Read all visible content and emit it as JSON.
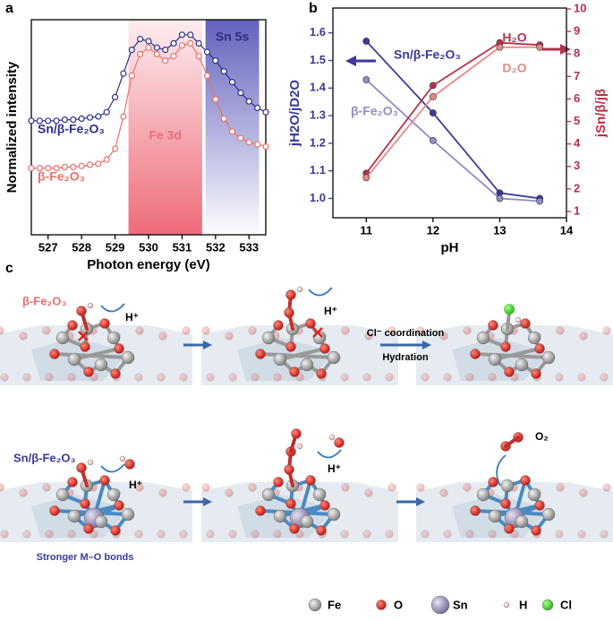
{
  "panel_labels": [
    "a",
    "b",
    "c"
  ],
  "chart_data": [
    {
      "type": "line",
      "x_label": "Photon energy (eV)",
      "y_label": "Normalized intensity",
      "xlim": [
        526.5,
        533.5
      ],
      "xticks": [
        527,
        528,
        529,
        530,
        531,
        532,
        533
      ],
      "ylim": [
        0,
        1
      ],
      "bands": [
        {
          "label": "Fe 3d",
          "x": [
            529.4,
            531.6
          ],
          "color": "#ee6b7a",
          "label_color": "#e8707a"
        },
        {
          "label": "Sn 5s",
          "x": [
            531.7,
            533.3
          ],
          "color": "#6262bd",
          "label_color": "#2c2c80"
        }
      ],
      "x": [
        526.5,
        526.75,
        527,
        527.25,
        527.5,
        527.75,
        528,
        528.25,
        528.5,
        528.75,
        529,
        529.25,
        529.5,
        529.75,
        530,
        530.25,
        530.5,
        530.75,
        531,
        531.25,
        531.5,
        531.75,
        532,
        532.25,
        532.5,
        532.75,
        533,
        533.25,
        533.5
      ],
      "series": [
        {
          "name": "Sn/β-Fe₂O₃",
          "color": "#2f2f8a",
          "values": [
            0.53,
            0.53,
            0.53,
            0.53,
            0.535,
            0.535,
            0.54,
            0.545,
            0.55,
            0.57,
            0.64,
            0.75,
            0.86,
            0.91,
            0.9,
            0.87,
            0.86,
            0.89,
            0.93,
            0.93,
            0.89,
            0.85,
            0.81,
            0.76,
            0.71,
            0.66,
            0.62,
            0.59,
            0.57
          ]
        },
        {
          "name": "β-Fe₂O₃",
          "color": "#e8706c",
          "values": [
            0.31,
            0.31,
            0.31,
            0.31,
            0.315,
            0.315,
            0.32,
            0.325,
            0.33,
            0.35,
            0.4,
            0.55,
            0.74,
            0.84,
            0.87,
            0.84,
            0.81,
            0.83,
            0.88,
            0.89,
            0.83,
            0.74,
            0.63,
            0.54,
            0.48,
            0.45,
            0.43,
            0.42,
            0.41
          ]
        }
      ]
    },
    {
      "type": "line",
      "x_label": "pH",
      "y_label": "jH2O/jD2O",
      "y2_label": "jSn/β/jβ",
      "xlim": [
        10.5,
        14
      ],
      "xticks": [
        11,
        12,
        13,
        14
      ],
      "ylim": [
        0.93,
        1.69
      ],
      "yticks": [
        {
          "value": 1.0,
          "label": "1.0"
        },
        1.1,
        1.2,
        1.3,
        1.4,
        1.5,
        1.6
      ],
      "y2lim": [
        0.72,
        10.04
      ],
      "y2ticks": [
        1,
        2,
        3,
        4,
        5,
        6,
        7,
        8,
        9,
        10
      ],
      "left_color": "#3a3a9a",
      "right_color": "#b8304c",
      "x": [
        11,
        12,
        13,
        13.6
      ],
      "series": [
        {
          "name": "Sn/β-Fe₂O₃",
          "color": "#3a3a9a",
          "values": [
            1.57,
            1.31,
            1.02,
            1.0
          ]
        },
        {
          "name": "β-Fe₂O₃",
          "color": "#8e8ec8",
          "values": [
            1.43,
            1.21,
            1.0,
            0.99
          ]
        },
        {
          "name": "H₂O",
          "color": "#b8304c",
          "axis": "y2",
          "values": [
            2.7,
            6.6,
            8.5,
            8.4
          ]
        },
        {
          "name": "D₂O",
          "color": "#e48a86",
          "axis": "y2",
          "values": [
            2.5,
            6.1,
            8.3,
            8.3
          ]
        }
      ]
    }
  ],
  "diagram": {
    "top_row": {
      "catalyst": "β-Fe₂O₃",
      "protons": [
        "H⁺",
        "H⁺"
      ],
      "arrow_labels": [
        "Cl⁻ coordination",
        "Hydration"
      ]
    },
    "bottom_row": {
      "catalyst": "Sn/β-Fe₂O₃",
      "protons": [
        "H⁺",
        "H⁺"
      ],
      "note": "Stronger M–O bonds",
      "product": "O₂"
    },
    "legend": [
      "Fe",
      "O",
      "Sn",
      "H",
      "Cl"
    ]
  }
}
